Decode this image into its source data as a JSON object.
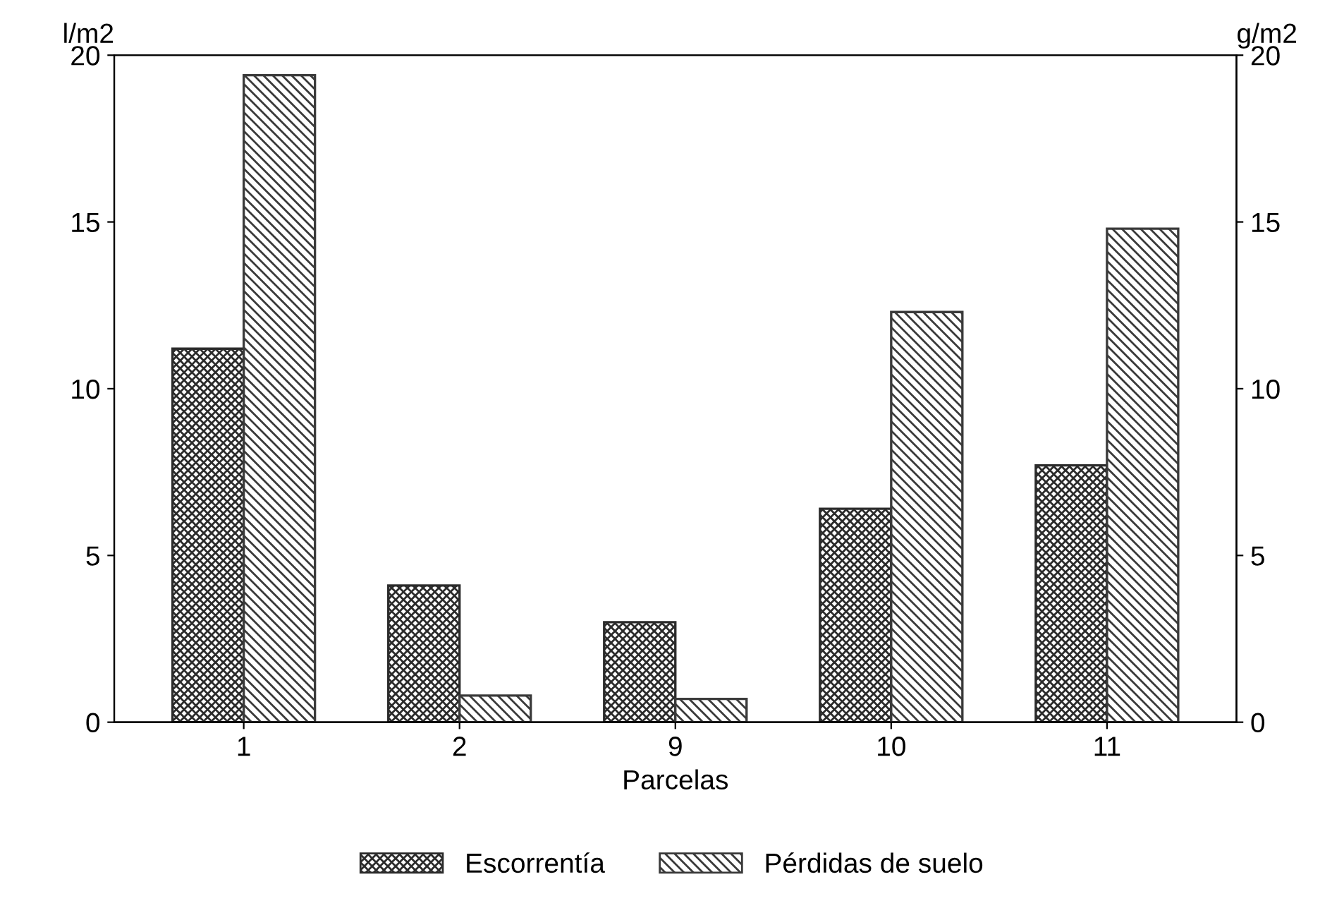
{
  "chart_data": {
    "type": "bar",
    "xlabel": "Parcelas",
    "ylabel": "l/m2",
    "y2label": "g/m2",
    "categories": [
      "1",
      "2",
      "9",
      "10",
      "11"
    ],
    "series": [
      {
        "name": "Escorrentía",
        "color": "#2b2b2b",
        "values": [
          11.2,
          4.1,
          3.0,
          6.4,
          7.7
        ]
      },
      {
        "name": "Pérdidas de suelo",
        "color": "#3a3a3a",
        "values": [
          19.4,
          0.8,
          0.7,
          12.3,
          14.8
        ],
        "axis": "y2"
      }
    ],
    "ylim": [
      0,
      20
    ],
    "yticks": [
      0,
      5,
      10,
      15,
      20
    ],
    "y2lim": [
      0,
      20
    ],
    "y2ticks": [
      0,
      5,
      10,
      15,
      20
    ],
    "grid": false,
    "legend": "bottom"
  }
}
